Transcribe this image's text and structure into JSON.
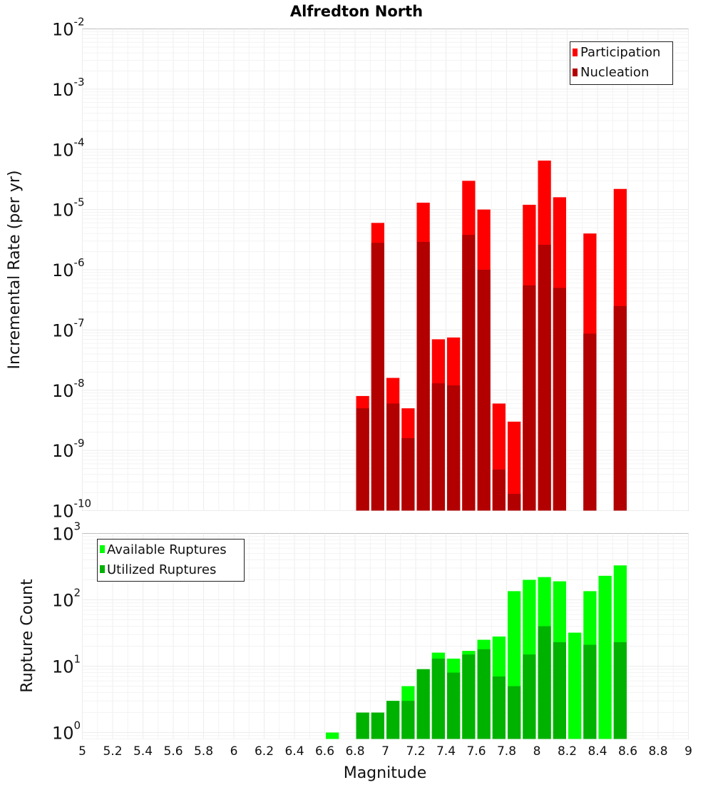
{
  "chart_data": [
    {
      "type": "bar",
      "title": "Alfredton North",
      "xlabel": "",
      "ylabel": "Incremental Rate (per yr)",
      "y_scale": "log",
      "ylim": [
        1e-10,
        0.01
      ],
      "xlim": [
        5,
        9
      ],
      "x_bin_width": 0.1,
      "grid": true,
      "legend_position": "top-right",
      "x": [
        6.85,
        6.95,
        7.05,
        7.15,
        7.25,
        7.35,
        7.45,
        7.55,
        7.65,
        7.75,
        7.85,
        7.95,
        8.05,
        8.15,
        8.35,
        8.55
      ],
      "series": [
        {
          "name": "Participation",
          "color": "#ff0000",
          "values": [
            8e-09,
            6e-06,
            1.6e-08,
            5e-09,
            1.3e-05,
            7e-08,
            7.5e-08,
            3e-05,
            1e-05,
            6e-09,
            3e-09,
            1.2e-05,
            6.5e-05,
            1.6e-05,
            4e-06,
            2.2e-05
          ]
        },
        {
          "name": "Nucleation",
          "color": "#b20000",
          "values": [
            5e-09,
            2.8e-06,
            6e-09,
            1.6e-09,
            2.9e-06,
            1.3e-08,
            1.2e-08,
            3.8e-06,
            1e-06,
            4.8e-10,
            1.9e-10,
            5.5e-07,
            2.6e-06,
            5e-07,
            8.7e-08,
            2.5e-07
          ]
        }
      ],
      "y_ticks": [
        {
          "base": "10",
          "exp": "-2",
          "value": 0.01
        },
        {
          "base": "10",
          "exp": "-3",
          "value": 0.001
        },
        {
          "base": "10",
          "exp": "-4",
          "value": 0.0001
        },
        {
          "base": "10",
          "exp": "-5",
          "value": 1e-05
        },
        {
          "base": "10",
          "exp": "-6",
          "value": 1e-06
        },
        {
          "base": "10",
          "exp": "-7",
          "value": 1e-07
        },
        {
          "base": "10",
          "exp": "-8",
          "value": 1e-08
        },
        {
          "base": "10",
          "exp": "-9",
          "value": 1e-09
        },
        {
          "base": "10",
          "exp": "-10",
          "value": 1e-10
        }
      ]
    },
    {
      "type": "bar",
      "title": "",
      "xlabel": "Magnitude",
      "ylabel": "Rupture Count",
      "y_scale": "log",
      "ylim": [
        0.8,
        1000
      ],
      "xlim": [
        5,
        9
      ],
      "x_bin_width": 0.1,
      "grid": true,
      "legend_position": "top-left",
      "x": [
        6.65,
        6.85,
        6.95,
        7.05,
        7.15,
        7.25,
        7.35,
        7.45,
        7.55,
        7.65,
        7.75,
        7.85,
        7.95,
        8.05,
        8.15,
        8.25,
        8.35,
        8.45,
        8.55
      ],
      "series": [
        {
          "name": "Available Ruptures",
          "color": "#00ff00",
          "values": [
            1,
            2,
            2,
            3,
            5,
            9,
            16,
            13,
            17,
            25,
            28,
            135,
            200,
            220,
            190,
            32,
            135,
            230,
            330
          ]
        },
        {
          "name": "Utilized Ruptures",
          "color": "#00b200",
          "values": [
            0,
            2,
            2,
            3,
            3,
            9,
            13,
            8,
            15,
            18,
            7,
            5,
            15,
            40,
            23,
            0,
            21,
            0,
            23
          ]
        }
      ],
      "y_ticks": [
        {
          "base": "10",
          "exp": "3",
          "value": 1000
        },
        {
          "base": "10",
          "exp": "2",
          "value": 100
        },
        {
          "base": "10",
          "exp": "1",
          "value": 10
        },
        {
          "base": "10",
          "exp": "0",
          "value": 1
        }
      ],
      "x_ticks": [
        "5",
        "5.2",
        "5.4",
        "5.6",
        "5.8",
        "6",
        "6.2",
        "6.4",
        "6.6",
        "6.8",
        "7",
        "7.2",
        "7.4",
        "7.6",
        "7.8",
        "8",
        "8.2",
        "8.4",
        "8.6",
        "8.8",
        "9"
      ]
    }
  ]
}
